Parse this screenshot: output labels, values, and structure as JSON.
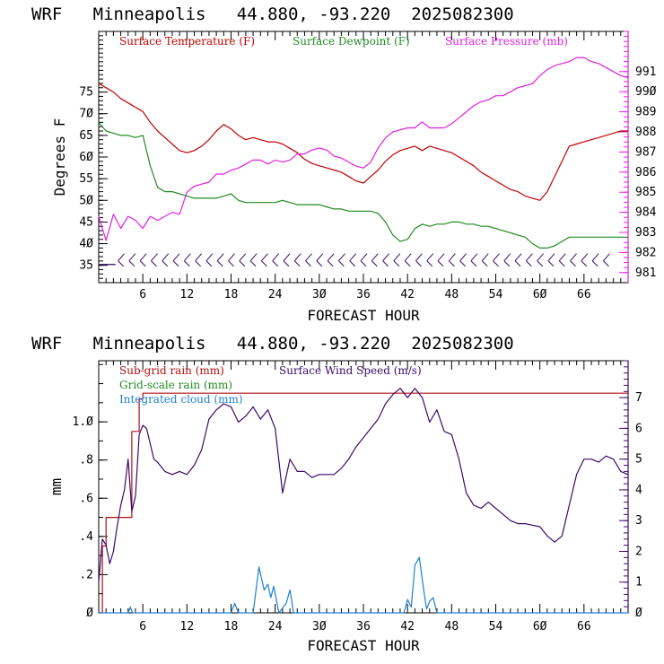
{
  "chart_data": [
    {
      "type": "line",
      "title": "WRF   Minneapolis   44.880, -93.220  2025082300",
      "xlabel": "FORECAST HOUR",
      "ylabel": "Degrees F",
      "x_ticks": [
        6,
        12,
        18,
        24,
        30,
        36,
        42,
        48,
        54,
        60,
        66
      ],
      "xlim": [
        0,
        72
      ],
      "ylim": [
        31,
        89
      ],
      "y_ticks": [
        35,
        40,
        45,
        50,
        55,
        60,
        65,
        70,
        75
      ],
      "y2lim": [
        980.5,
        993.0
      ],
      "y2_ticks": [
        981,
        982,
        983,
        984,
        985,
        986,
        987,
        988,
        989,
        990,
        991
      ],
      "legend": [
        "Surface Temperature (F)",
        "Surface Dewpoint (F)",
        "Surface Pressure (mb)"
      ],
      "colors": {
        "temperature": "#c00000",
        "dewpoint": "#228b22",
        "pressure": "#e020e0",
        "wind_barbs": "#3a0a6a"
      },
      "series": [
        {
          "name": "Surface Temperature (F)",
          "axis": "left",
          "x": [
            0,
            1,
            2,
            3,
            4,
            5,
            6,
            7,
            8,
            9,
            10,
            11,
            12,
            13,
            14,
            15,
            16,
            17,
            18,
            19,
            20,
            21,
            22,
            23,
            24,
            25,
            26,
            27,
            28,
            29,
            30,
            31,
            32,
            33,
            34,
            35,
            36,
            37,
            38,
            39,
            40,
            41,
            42,
            43,
            44,
            45,
            46,
            47,
            48,
            49,
            50,
            51,
            52,
            53,
            54,
            55,
            56,
            57,
            58,
            59,
            60,
            61,
            62,
            63,
            64,
            65,
            66,
            67,
            68,
            69,
            70,
            71,
            72
          ],
          "y": [
            77.0,
            76.0,
            75.0,
            73.5,
            72.5,
            71.5,
            70.5,
            68.0,
            66.0,
            64.5,
            63.0,
            61.5,
            61.0,
            61.5,
            62.5,
            64.0,
            66.0,
            67.5,
            66.5,
            65.0,
            64.0,
            64.5,
            64.0,
            63.5,
            63.5,
            63.0,
            62.0,
            61.0,
            59.5,
            58.5,
            58.0,
            57.5,
            57.0,
            56.5,
            55.5,
            54.5,
            54.0,
            55.5,
            57.0,
            59.0,
            60.5,
            61.5,
            62.0,
            62.5,
            61.5,
            62.5,
            62.0,
            61.5,
            61.0,
            60.0,
            59.0,
            58.0,
            56.5,
            55.5,
            54.5,
            53.5,
            52.5,
            52.0,
            51.0,
            50.5,
            50.0,
            52.0,
            55.5,
            59.0,
            62.5,
            63.0,
            63.5,
            64.0,
            64.5,
            65.0,
            65.5,
            66.0,
            66.0
          ]
        },
        {
          "name": "Surface Dewpoint (F)",
          "axis": "left",
          "x": [
            0,
            1,
            2,
            3,
            4,
            5,
            6,
            7,
            8,
            9,
            10,
            11,
            12,
            13,
            14,
            15,
            16,
            17,
            18,
            19,
            20,
            21,
            22,
            23,
            24,
            25,
            26,
            27,
            28,
            29,
            30,
            31,
            32,
            33,
            34,
            35,
            36,
            37,
            38,
            39,
            40,
            41,
            42,
            43,
            44,
            45,
            46,
            47,
            48,
            49,
            50,
            51,
            52,
            53,
            54,
            55,
            56,
            57,
            58,
            59,
            60,
            61,
            62,
            63,
            64,
            65,
            66,
            67,
            68,
            69,
            70,
            71,
            72
          ],
          "y": [
            68.0,
            66.0,
            65.5,
            65.0,
            65.0,
            64.5,
            65.0,
            58.0,
            53.0,
            52.0,
            52.0,
            51.5,
            51.0,
            50.5,
            50.5,
            50.5,
            50.5,
            51.0,
            51.5,
            50.0,
            49.5,
            49.5,
            49.5,
            49.5,
            49.5,
            50.0,
            49.5,
            49.0,
            49.0,
            49.0,
            49.0,
            48.5,
            48.0,
            48.0,
            47.5,
            47.5,
            47.5,
            47.5,
            47.0,
            45.0,
            42.0,
            40.5,
            41.0,
            43.5,
            44.5,
            44.0,
            44.5,
            44.5,
            45.0,
            45.0,
            44.5,
            44.5,
            44.0,
            44.0,
            43.5,
            43.0,
            42.5,
            42.0,
            41.5,
            40.0,
            39.0,
            39.0,
            39.5,
            40.5,
            41.5,
            41.5,
            41.5,
            41.5,
            41.5,
            41.5,
            41.5,
            41.5,
            41.5
          ]
        },
        {
          "name": "Surface Pressure (mb)",
          "axis": "right",
          "x": [
            0,
            1,
            2,
            3,
            4,
            5,
            6,
            7,
            8,
            9,
            10,
            11,
            12,
            13,
            14,
            15,
            16,
            17,
            18,
            19,
            20,
            21,
            22,
            23,
            24,
            25,
            26,
            27,
            28,
            29,
            30,
            31,
            32,
            33,
            34,
            35,
            36,
            37,
            38,
            39,
            40,
            41,
            42,
            43,
            44,
            45,
            46,
            47,
            48,
            49,
            50,
            51,
            52,
            53,
            54,
            55,
            56,
            57,
            58,
            59,
            60,
            61,
            62,
            63,
            64,
            65,
            66,
            67,
            68,
            69,
            70,
            71,
            72
          ],
          "y": [
            983.8,
            982.6,
            983.9,
            983.2,
            983.8,
            983.6,
            983.2,
            983.8,
            983.6,
            983.8,
            984.0,
            983.9,
            985.0,
            985.3,
            985.4,
            985.5,
            985.9,
            985.9,
            986.1,
            986.2,
            986.4,
            986.6,
            986.6,
            986.4,
            986.6,
            986.5,
            986.6,
            986.9,
            986.9,
            987.1,
            987.2,
            987.1,
            986.8,
            986.7,
            986.5,
            986.3,
            986.2,
            986.5,
            987.2,
            987.7,
            988.0,
            988.1,
            988.2,
            988.2,
            988.5,
            988.2,
            988.2,
            988.2,
            988.4,
            988.7,
            989.0,
            989.3,
            989.5,
            989.6,
            989.8,
            989.8,
            990.0,
            990.2,
            990.3,
            990.4,
            990.8,
            991.1,
            991.3,
            991.4,
            991.5,
            991.7,
            991.7,
            991.5,
            991.4,
            991.2,
            991.0,
            990.8,
            990.7
          ]
        }
      ]
    },
    {
      "type": "line",
      "title": "WRF   Minneapolis   44.880, -93.220  2025082300",
      "xlabel": "FORECAST HOUR",
      "ylabel": "mm",
      "x_ticks": [
        6,
        12,
        18,
        24,
        30,
        36,
        42,
        48,
        54,
        60,
        66
      ],
      "xlim": [
        0,
        72
      ],
      "ylim": [
        0,
        1.32
      ],
      "y_ticks": [
        0,
        0.2,
        0.4,
        0.6,
        0.8,
        1.0
      ],
      "y_tick_labels": [
        "0",
        ".2",
        ".4",
        ".6",
        ".8",
        "1.0"
      ],
      "y2lim": [
        0,
        8.2
      ],
      "y2_ticks": [
        0,
        1,
        2,
        3,
        4,
        5,
        6,
        7
      ],
      "legend": [
        "Sub-grid rain (mm)",
        "Grid-scale rain (mm)",
        "Integrated cloud (mm)",
        "Surface Wind Speed (m/s)"
      ],
      "colors": {
        "subgrid_rain": "#b01010",
        "gridscale_rain": "#228b22",
        "integrated_cloud": "#1e7fd0",
        "wind_speed": "#3a0a6a"
      },
      "series": [
        {
          "name": "Sub-grid rain (mm)",
          "axis": "left",
          "step": true,
          "x": [
            0,
            0.5,
            1.0,
            4.0,
            4.5,
            5.0,
            5.5,
            6.0,
            72
          ],
          "y": [
            0.0,
            0.35,
            0.5,
            0.5,
            0.95,
            0.95,
            1.12,
            1.15,
            1.15
          ]
        },
        {
          "name": "Integrated cloud (mm)",
          "axis": "left",
          "x": [
            0,
            4,
            4.3,
            4.6,
            18.0,
            18.5,
            19.0,
            21.0,
            21.8,
            22.5,
            23.0,
            23.4,
            23.8,
            24.5,
            25.5,
            26.0,
            26.5,
            41.5,
            42.0,
            42.5,
            43.0,
            43.6,
            44.2,
            44.6,
            45.0,
            45.5,
            46.0,
            72
          ],
          "y": [
            0,
            0,
            0.03,
            0,
            0,
            0.05,
            0,
            0,
            0.24,
            0.12,
            0.15,
            0.08,
            0.14,
            0,
            0.05,
            0.12,
            0,
            0,
            0.07,
            0.03,
            0.25,
            0.29,
            0.12,
            0.02,
            0.06,
            0.08,
            0,
            0
          ]
        },
        {
          "name": "Surface Wind Speed (m/s)",
          "axis": "right",
          "x": [
            0,
            0.5,
            1,
            1.5,
            2,
            2.5,
            3,
            3.5,
            4,
            4.5,
            5,
            5.5,
            6,
            6.5,
            7,
            7.5,
            8,
            9,
            10,
            11,
            12,
            13,
            14,
            15,
            16,
            17,
            18,
            19,
            20,
            21,
            22,
            23,
            24,
            25,
            26,
            27,
            28,
            29,
            30,
            31,
            32,
            33,
            34,
            35,
            36,
            37,
            38,
            39,
            40,
            41,
            42,
            43,
            44,
            45,
            46,
            47,
            48,
            49,
            50,
            51,
            52,
            53,
            54,
            55,
            56,
            57,
            58,
            59,
            60,
            61,
            62,
            63,
            64,
            65,
            66,
            67,
            68,
            69,
            70,
            71,
            72
          ],
          "y": [
            1.0,
            2.4,
            2.2,
            1.6,
            2.0,
            2.8,
            3.5,
            4.0,
            5.0,
            3.3,
            3.8,
            5.8,
            6.1,
            6.0,
            5.5,
            5.0,
            4.9,
            4.6,
            4.5,
            4.6,
            4.5,
            4.8,
            5.3,
            6.3,
            6.6,
            6.8,
            6.7,
            6.2,
            6.4,
            6.7,
            6.3,
            6.6,
            6.0,
            3.9,
            5.0,
            4.6,
            4.6,
            4.4,
            4.5,
            4.5,
            4.5,
            4.7,
            5.0,
            5.4,
            5.7,
            6.0,
            6.3,
            6.8,
            7.1,
            7.3,
            7.0,
            7.3,
            7.0,
            6.2,
            6.6,
            5.9,
            5.8,
            5.0,
            3.9,
            3.5,
            3.4,
            3.6,
            3.4,
            3.2,
            3.0,
            2.9,
            2.9,
            2.85,
            2.8,
            2.5,
            2.3,
            2.5,
            3.5,
            4.5,
            5.0,
            5.0,
            4.9,
            5.1,
            5.0,
            4.6,
            4.5
          ]
        }
      ]
    }
  ]
}
